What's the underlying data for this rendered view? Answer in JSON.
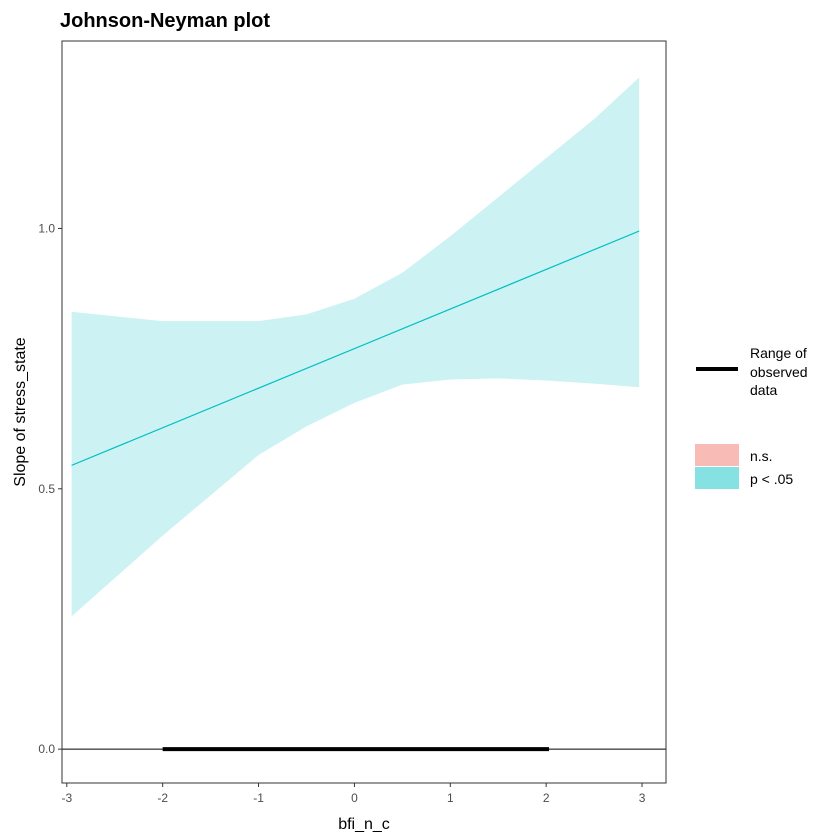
{
  "chart_data": {
    "type": "line",
    "title": "Johnson-Neyman plot",
    "xlabel": "bfi_n_c",
    "ylabel": "Slope of stress_state",
    "xlim": [
      -3.05,
      3.25
    ],
    "ylim": [
      -0.065,
      1.36
    ],
    "x_ticks": [
      -3,
      -2,
      -1,
      0,
      1,
      2,
      3
    ],
    "y_ticks": [
      0.0,
      0.5,
      1.0
    ],
    "x_tick_labels": [
      "-3",
      "-2",
      "-1",
      "0",
      "1",
      "2",
      "3"
    ],
    "y_tick_labels": [
      "0.0",
      "0.5",
      "1.0"
    ],
    "grid": false,
    "reference_line_y": 0,
    "slope_line": {
      "x": [
        -2.95,
        2.97
      ],
      "y": [
        0.545,
        0.995
      ],
      "color": "#00bfc4"
    },
    "confidence_band": {
      "color": "#00bfc4",
      "opacity": 0.2,
      "x": [
        -2.95,
        -2.0,
        -1.0,
        -0.5,
        0.0,
        0.5,
        1.0,
        1.5,
        2.0,
        2.5,
        2.97
      ],
      "lower": [
        0.255,
        0.41,
        0.565,
        0.62,
        0.665,
        0.7,
        0.71,
        0.712,
        0.708,
        0.702,
        0.695
      ],
      "upper": [
        0.84,
        0.822,
        0.822,
        0.835,
        0.865,
        0.915,
        0.985,
        1.06,
        1.135,
        1.21,
        1.29
      ]
    },
    "observed_range": {
      "x": [
        -2.0,
        2.03
      ],
      "y": 0
    },
    "legend": {
      "placement": "right",
      "line_label_lines": [
        "Range of",
        "observed",
        "data"
      ],
      "items": [
        {
          "label": "n.s.",
          "color": "#f8bbb6"
        },
        {
          "label": "p < .05",
          "color": "#86e1e3"
        }
      ]
    }
  }
}
